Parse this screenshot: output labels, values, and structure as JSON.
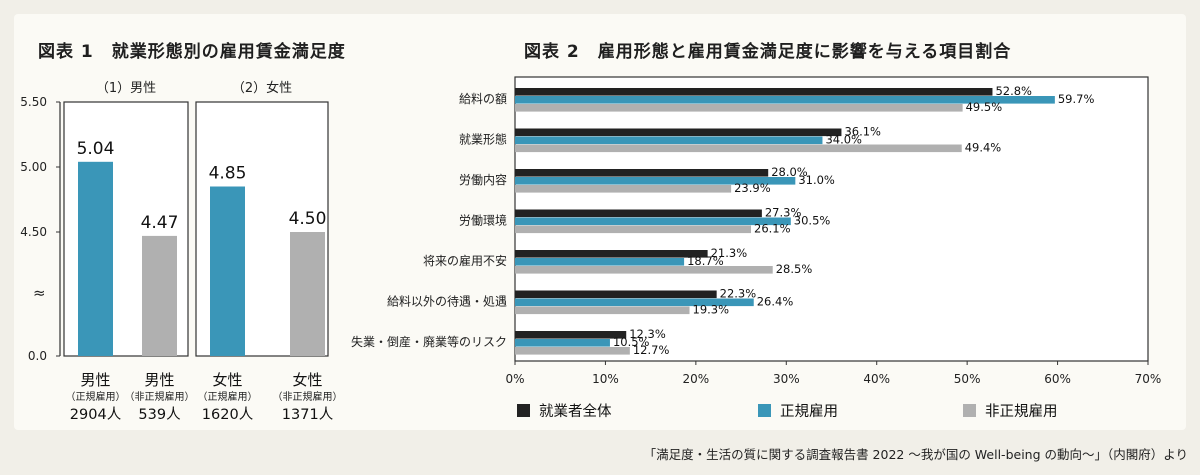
{
  "source": "「満足度・生活の質に関する調査報告書 2022 〜我が国の Well-being の動向〜」（内閣府）より",
  "colors": {
    "male_regular": "#3a96b8",
    "male_nonregular": "#b0b0b0",
    "all_workers": "#222222",
    "regular": "#3a96b8",
    "nonregular": "#b0b0b0"
  },
  "chart_data": [
    {
      "type": "bar",
      "title": "図表 1　就業形態別の雇用賃金満足度",
      "ylim": [
        0.0,
        5.5
      ],
      "y_ticks": [
        "5.50",
        "5.00",
        "4.50",
        "0.0"
      ],
      "axis_break": "≈",
      "groups": [
        {
          "label": "（1）男性",
          "bars": [
            {
              "name": "男性",
              "sub": "（正規雇用）",
              "n": "2904人",
              "value": 5.04,
              "label": "5.04",
              "color_key": "regular"
            },
            {
              "name": "男性",
              "sub": "（非正規雇用）",
              "n": "539人",
              "value": 4.47,
              "label": "4.47",
              "color_key": "nonregular"
            }
          ]
        },
        {
          "label": "（2）女性",
          "bars": [
            {
              "name": "女性",
              "sub": "（正規雇用）",
              "n": "1620人",
              "value": 4.85,
              "label": "4.85",
              "color_key": "regular"
            },
            {
              "name": "女性",
              "sub": "（非正規雇用）",
              "n": "1371人",
              "value": 4.5,
              "label": "4.50",
              "color_key": "nonregular"
            }
          ]
        }
      ]
    },
    {
      "type": "bar",
      "orientation": "horizontal",
      "title": "図表 2　雇用形態と雇用賃金満足度に影響を与える項目割合",
      "categories": [
        "給料の額",
        "就業形態",
        "労働内容",
        "労働環境",
        "将来の雇用不安",
        "給料以外の待遇・処遇",
        "失業・倒産・廃業等のリスク"
      ],
      "series": [
        {
          "name": "就業者全体",
          "values": [
            52.8,
            36.1,
            28.0,
            27.3,
            21.3,
            22.3,
            12.3
          ],
          "color_key": "all_workers"
        },
        {
          "name": "正規雇用",
          "values": [
            59.7,
            34.0,
            31.0,
            30.5,
            18.7,
            26.4,
            10.5
          ],
          "color_key": "regular"
        },
        {
          "name": "非正規雇用",
          "values": [
            49.5,
            49.4,
            23.9,
            26.1,
            28.5,
            19.3,
            12.7
          ],
          "color_key": "nonregular"
        }
      ],
      "xlim": [
        0,
        70
      ],
      "x_ticks": [
        "0%",
        "10%",
        "20%",
        "30%",
        "40%",
        "50%",
        "60%",
        "70%"
      ],
      "value_suffix": "%",
      "legend_position": "bottom"
    }
  ]
}
